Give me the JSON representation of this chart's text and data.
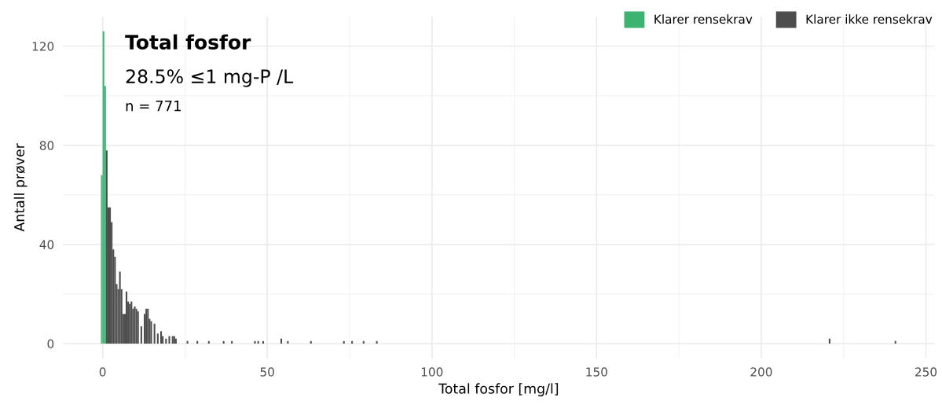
{
  "chart_data": {
    "type": "histogram",
    "xlabel": "Total fosfor [mg/l]",
    "ylabel": "Antall prøver",
    "annotations": [
      "Total fosfor",
      "28.5% ≤1 mg-P /L",
      "n = 771"
    ],
    "xlim": [
      -12,
      252.6
    ],
    "ylim": [
      -6,
      132
    ],
    "xticks": [
      0,
      50,
      100,
      150,
      200,
      250
    ],
    "yticks": [
      0,
      40,
      80,
      120
    ],
    "grid": true,
    "legend": "top right",
    "bins": [
      -0.5,
      0,
      0.5,
      1.0,
      1.5,
      2.0,
      2.5,
      3.0,
      3.5,
      4.0,
      4.5,
      5.0,
      5.5,
      6.0,
      6.5,
      7.0,
      7.5,
      8.0,
      8.5,
      9.0,
      9.5,
      10.0,
      10.5,
      11.0,
      11.5,
      12.0,
      12.5,
      13.0,
      13.5,
      14.0,
      14.5,
      15.0,
      15.5,
      16.0,
      16.5,
      17.0,
      17.5,
      18.0,
      18.5,
      19.0,
      19.5,
      20.0,
      20.5,
      21.0,
      21.5,
      22.0,
      22.5,
      25.5,
      26.0,
      28.5,
      29,
      32,
      32.5,
      36.5,
      37,
      39,
      39.5,
      46,
      46.5,
      47,
      47.5,
      48.5,
      49,
      54,
      54.5,
      56,
      56.5,
      63,
      63.5,
      73,
      73.5,
      75.5,
      76,
      79,
      79.5,
      83,
      83.5,
      220.5,
      221,
      240.5,
      241
    ],
    "series": [
      {
        "name": "Klarer rensekrav",
        "color": "#3cb371",
        "values": [
          68,
          126,
          104,
          null,
          null,
          null,
          null,
          null,
          null,
          null,
          null,
          null,
          null,
          null,
          null,
          null,
          null,
          null,
          null,
          null,
          null,
          null,
          null,
          null,
          null,
          null,
          null,
          null,
          null,
          null,
          null,
          null,
          null,
          null,
          null,
          null,
          null,
          null,
          null,
          null,
          null,
          null,
          null,
          null,
          null,
          null,
          null,
          null,
          null,
          null,
          null,
          null,
          null,
          null,
          null,
          null,
          null,
          null,
          null,
          null,
          null,
          null,
          null,
          null,
          null,
          null,
          null,
          null,
          null,
          null,
          null,
          null,
          null,
          null,
          null,
          null,
          null,
          null,
          null,
          null
        ]
      },
      {
        "name": "Klarer ikke rensekrav",
        "color": "#4d4d4d",
        "values": [
          null,
          null,
          null,
          78,
          55,
          55,
          49,
          38,
          35,
          24,
          22,
          29,
          22,
          12,
          12,
          21,
          17,
          16,
          17,
          14,
          15,
          14,
          13,
          0,
          7,
          0,
          12,
          14,
          14,
          10,
          9,
          0,
          8,
          0,
          4,
          0,
          5,
          3,
          0,
          2,
          0,
          3,
          0,
          3,
          3,
          2,
          0,
          1,
          0,
          1,
          0,
          1,
          0,
          1,
          0,
          1,
          0,
          1,
          0,
          1,
          0,
          1,
          0,
          2,
          0,
          1,
          0,
          1,
          0,
          1,
          0,
          1,
          0,
          1,
          0,
          1,
          0,
          2,
          0,
          1
        ]
      }
    ]
  }
}
